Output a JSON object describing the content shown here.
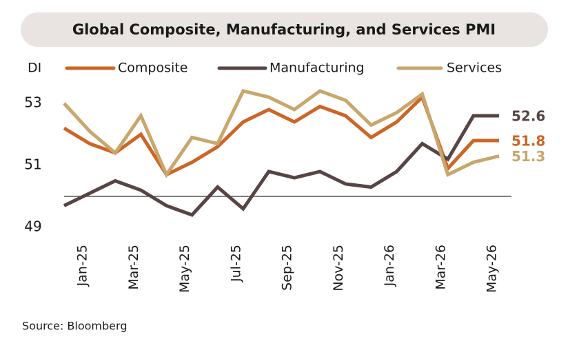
{
  "chart_data": {
    "type": "line",
    "title": "Global Composite, Manufacturing, and Services PMI",
    "ylabel": "DI",
    "source": "Source: Bloomberg",
    "categories": [
      null,
      "Jan-25",
      null,
      "Mar-25",
      null,
      "May-25",
      null,
      "Jul-25",
      null,
      "Sep-25",
      null,
      "Nov-25",
      null,
      "Jan-26",
      null,
      "Mar-26",
      null,
      "May-26"
    ],
    "series": [
      {
        "name": "Composite",
        "color": "#cc6526",
        "values": [
          52.2,
          51.7,
          51.4,
          52.0,
          50.7,
          51.1,
          51.6,
          52.4,
          52.8,
          52.4,
          52.9,
          52.6,
          51.9,
          52.4,
          53.2,
          50.9,
          51.8,
          51.8
        ]
      },
      {
        "name": "Manufacturing",
        "color": "#584444",
        "values": [
          49.7,
          50.1,
          50.5,
          50.2,
          49.7,
          49.4,
          50.3,
          49.6,
          50.8,
          50.6,
          50.8,
          50.4,
          50.3,
          50.8,
          51.7,
          51.2,
          52.6,
          52.6
        ]
      },
      {
        "name": "Services",
        "color": "#c9a66b",
        "values": [
          53.0,
          52.1,
          51.4,
          52.6,
          50.7,
          51.9,
          51.7,
          53.4,
          53.2,
          52.8,
          53.4,
          53.1,
          52.3,
          52.7,
          53.3,
          50.7,
          51.1,
          51.3
        ]
      }
    ],
    "ylim": [
      48.8,
      53.7
    ],
    "yticks": [
      49,
      51,
      53
    ],
    "reference_line": 50,
    "grid": false
  }
}
